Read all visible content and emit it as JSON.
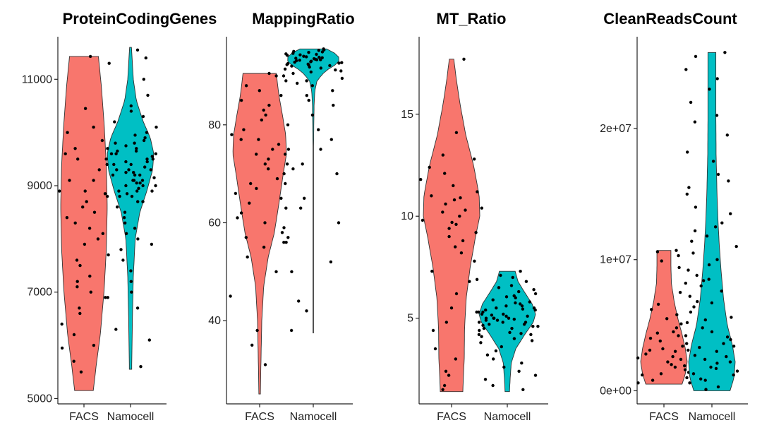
{
  "colors": {
    "FACS": "#F8766D",
    "Namocell": "#00BFC4",
    "point": "#000000"
  },
  "chart_data": [
    {
      "type": "violin",
      "title": "ProteinCodingGenes",
      "categories": [
        "FACS",
        "Namocell"
      ],
      "ylim": [
        4900,
        11800
      ],
      "yticks": [
        5000,
        7000,
        9000,
        11000
      ],
      "ytick_labels": [
        "5000",
        "7000",
        "9000",
        "11000"
      ],
      "series": [
        {
          "name": "FACS",
          "min": 5150,
          "max": 11430,
          "profile": [
            [
              5150,
              0.4
            ],
            [
              5600,
              0.52
            ],
            [
              6200,
              0.7
            ],
            [
              7000,
              0.86
            ],
            [
              7800,
              0.96
            ],
            [
              8600,
              1.0
            ],
            [
              9400,
              0.96
            ],
            [
              10200,
              0.86
            ],
            [
              10900,
              0.74
            ],
            [
              11430,
              0.62
            ]
          ],
          "points": [
            11430,
            11300,
            10450,
            10100,
            9850,
            9700,
            9500,
            9300,
            9100,
            8900,
            8900,
            8700,
            8600,
            8500,
            8300,
            8200,
            8100,
            7900,
            7700,
            7500,
            7300,
            7100,
            7000,
            6900,
            6700,
            6400,
            6200,
            6000,
            5700,
            5500,
            8800,
            9600,
            9100,
            8000,
            7600,
            7200,
            10000,
            8400,
            6600,
            5950
          ]
        },
        {
          "name": "Namocell",
          "min": 5550,
          "max": 11600,
          "profile": [
            [
              5550,
              0.05
            ],
            [
              6500,
              0.08
            ],
            [
              7300,
              0.12
            ],
            [
              8000,
              0.2
            ],
            [
              8500,
              0.4
            ],
            [
              8900,
              0.7
            ],
            [
              9300,
              0.95
            ],
            [
              9600,
              1.0
            ],
            [
              9900,
              0.85
            ],
            [
              10200,
              0.55
            ],
            [
              10600,
              0.25
            ],
            [
              11000,
              0.12
            ],
            [
              11600,
              0.04
            ]
          ],
          "points": [
            11550,
            11400,
            11000,
            10700,
            10500,
            10400,
            10300,
            10200,
            10100,
            10000,
            9950,
            9900,
            9850,
            9800,
            9750,
            9700,
            9650,
            9600,
            9600,
            9550,
            9500,
            9500,
            9450,
            9400,
            9400,
            9350,
            9300,
            9300,
            9250,
            9200,
            9200,
            9150,
            9100,
            9100,
            9050,
            9000,
            9000,
            8950,
            8900,
            8900,
            8850,
            8800,
            8800,
            8700,
            8700,
            8600,
            8500,
            8400,
            8300,
            8200,
            8100,
            8000,
            7900,
            7800,
            7600,
            7400,
            7200,
            7000,
            6900,
            6700,
            6300,
            6100,
            5600,
            9700,
            9600,
            9500,
            9400,
            9300,
            9200,
            9100,
            9000,
            8900,
            9800,
            9650,
            9450,
            9250,
            9050,
            8850
          ]
        }
      ]
    },
    {
      "type": "violin",
      "title": "MappingRatio",
      "categories": [
        "FACS",
        "Namocell"
      ],
      "ylim": [
        23,
        98
      ],
      "yticks": [
        40,
        60,
        80
      ],
      "ytick_labels": [
        "40",
        "60",
        "80"
      ],
      "series": [
        {
          "name": "FACS",
          "min": 25,
          "max": 90.5,
          "profile": [
            [
              25,
              0.03
            ],
            [
              32,
              0.05
            ],
            [
              40,
              0.08
            ],
            [
              47,
              0.15
            ],
            [
              53,
              0.32
            ],
            [
              58,
              0.55
            ],
            [
              64,
              0.72
            ],
            [
              70,
              0.88
            ],
            [
              74,
              1.0
            ],
            [
              78,
              0.97
            ],
            [
              82,
              0.85
            ],
            [
              86,
              0.72
            ],
            [
              90.5,
              0.62
            ]
          ],
          "points": [
            90.5,
            90,
            89,
            88,
            87,
            86,
            85,
            84,
            83,
            82,
            81,
            80,
            79,
            78,
            77,
            76,
            75,
            75,
            74,
            74,
            73,
            72,
            71,
            70,
            69,
            68,
            67,
            66,
            65,
            64,
            63,
            62,
            61,
            60,
            59,
            58,
            57,
            56,
            55,
            53,
            50,
            45,
            38,
            35,
            31,
            77,
            72,
            68
          ]
        },
        {
          "name": "Namocell",
          "min": 37.5,
          "max": 95.5,
          "profile": [
            [
              37.5,
              0.01
            ],
            [
              45,
              0.01
            ],
            [
              55,
              0.01
            ],
            [
              65,
              0.01
            ],
            [
              75,
              0.01
            ],
            [
              80,
              0.02
            ],
            [
              84,
              0.03
            ],
            [
              87,
              0.06
            ],
            [
              89,
              0.14
            ],
            [
              91,
              0.45
            ],
            [
              92.5,
              0.9
            ],
            [
              93.5,
              1.0
            ],
            [
              94.5,
              0.85
            ],
            [
              95.5,
              0.5
            ]
          ],
          "points": [
            95.5,
            95.2,
            95,
            94.8,
            94.6,
            94.5,
            94.4,
            94.2,
            94,
            93.9,
            93.8,
            93.6,
            93.5,
            93.4,
            93.3,
            93.2,
            93,
            92.9,
            92.8,
            92.6,
            92.5,
            92.4,
            92.2,
            92,
            91.8,
            91.6,
            91.4,
            91.2,
            91,
            90.8,
            90.5,
            90,
            89.5,
            89,
            88.5,
            88,
            87,
            86,
            85,
            84,
            82,
            79,
            77,
            75,
            72,
            71,
            70,
            65,
            63,
            60,
            57,
            56,
            52,
            50,
            44,
            42,
            38,
            94.3,
            93.7,
            93.1,
            92.7,
            92.3,
            94.9,
            95.3,
            93.3,
            92.1
          ]
        }
      ]
    },
    {
      "type": "violin",
      "title": "MT_Ratio",
      "categories": [
        "FACS",
        "Namocell"
      ],
      "ylim": [
        0.8,
        18.8
      ],
      "yticks": [
        5,
        10,
        15
      ],
      "ytick_labels": [
        "5",
        "10",
        "15"
      ],
      "series": [
        {
          "name": "FACS",
          "min": 1.4,
          "max": 17.7,
          "profile": [
            [
              1.4,
              0.4
            ],
            [
              2.2,
              0.42
            ],
            [
              3.0,
              0.45
            ],
            [
              4.5,
              0.46
            ],
            [
              6,
              0.52
            ],
            [
              7.5,
              0.66
            ],
            [
              9,
              0.85
            ],
            [
              10,
              1.0
            ],
            [
              11,
              0.98
            ],
            [
              12.5,
              0.78
            ],
            [
              14,
              0.5
            ],
            [
              15.5,
              0.3
            ],
            [
              16.8,
              0.16
            ],
            [
              17.7,
              0.08
            ]
          ],
          "points": [
            17.7,
            14.1,
            13,
            12.8,
            12.4,
            12.1,
            11.8,
            11.5,
            11.2,
            11,
            10.8,
            10.6,
            10.4,
            10.2,
            10,
            9.8,
            9.6,
            9.4,
            9.2,
            9,
            8.8,
            8.5,
            8.2,
            7.8,
            7.3,
            6.8,
            6.2,
            5.5,
            4.8,
            4.4,
            4.2,
            3.5,
            3.0,
            2.4,
            2.2,
            1.7,
            1.5,
            10.9,
            10.3,
            9.7
          ]
        },
        {
          "name": "Namocell",
          "min": 1.4,
          "max": 7.3,
          "profile": [
            [
              1.4,
              0.08
            ],
            [
              2.0,
              0.1
            ],
            [
              2.8,
              0.14
            ],
            [
              3.5,
              0.3
            ],
            [
              4.2,
              0.62
            ],
            [
              4.8,
              0.92
            ],
            [
              5.2,
              1.0
            ],
            [
              5.7,
              0.88
            ],
            [
              6.3,
              0.6
            ],
            [
              6.8,
              0.38
            ],
            [
              7.3,
              0.28
            ]
          ],
          "points": [
            7.3,
            7.1,
            7,
            6.9,
            6.8,
            6.6,
            6.5,
            6.4,
            6.3,
            6.2,
            6.1,
            6,
            5.9,
            5.8,
            5.7,
            5.6,
            5.5,
            5.5,
            5.4,
            5.4,
            5.3,
            5.3,
            5.2,
            5.2,
            5.1,
            5.1,
            5,
            5,
            5,
            4.9,
            4.9,
            4.8,
            4.8,
            4.7,
            4.7,
            4.6,
            4.6,
            4.5,
            4.5,
            4.4,
            4.3,
            4.2,
            4.1,
            4,
            3.9,
            3.8,
            3.6,
            3.4,
            3.2,
            3,
            2.8,
            2.6,
            2.4,
            2.2,
            2.0,
            1.7,
            1.5,
            5.3,
            5.0,
            4.8,
            5.6,
            5.15,
            4.95,
            5.45,
            4.65,
            5.75,
            6.05,
            4.25
          ]
        }
      ]
    },
    {
      "type": "violin",
      "title": "CleanReadsCount",
      "categories": [
        "FACS",
        "Namocell"
      ],
      "ylim": [
        -1000000,
        27000000
      ],
      "yticks": [
        0,
        10000000,
        20000000
      ],
      "ytick_labels": [
        "0e+00",
        "1e+07",
        "2e+07"
      ],
      "series": [
        {
          "name": "FACS",
          "min": 500000,
          "max": 10700000,
          "profile": [
            [
              500000,
              0.78
            ],
            [
              1300000,
              0.92
            ],
            [
              2200000,
              1.0
            ],
            [
              3200000,
              0.92
            ],
            [
              4300000,
              0.78
            ],
            [
              5500000,
              0.6
            ],
            [
              6800000,
              0.44
            ],
            [
              8200000,
              0.32
            ],
            [
              9500000,
              0.3
            ],
            [
              10700000,
              0.3
            ]
          ],
          "points": [
            10700000,
            10600000,
            10300000,
            9900000,
            9400000,
            8200000,
            7500000,
            6600000,
            6200000,
            5800000,
            5500000,
            5100000,
            4800000,
            4500000,
            4200000,
            4000000,
            3800000,
            3600000,
            3400000,
            3200000,
            3000000,
            2800000,
            2600000,
            2400000,
            2200000,
            2000000,
            1800000,
            1600000,
            1400000,
            1200000,
            1000000,
            800000,
            600000,
            3100000,
            2500000,
            1900000,
            1300000,
            4400000
          ]
        },
        {
          "name": "Namocell",
          "min": 0,
          "max": 25800000,
          "profile": [
            [
              0,
              0.78
            ],
            [
              1000000,
              0.95
            ],
            [
              2200000,
              1.0
            ],
            [
              3500000,
              0.88
            ],
            [
              5000000,
              0.66
            ],
            [
              7000000,
              0.5
            ],
            [
              9000000,
              0.4
            ],
            [
              11000000,
              0.32
            ],
            [
              13000000,
              0.26
            ],
            [
              15000000,
              0.22
            ],
            [
              18000000,
              0.18
            ],
            [
              21000000,
              0.17
            ],
            [
              24000000,
              0.17
            ],
            [
              25800000,
              0.17
            ]
          ],
          "points": [
            25800000,
            25500000,
            24500000,
            23800000,
            23000000,
            22000000,
            20500000,
            19500000,
            18200000,
            17500000,
            16500000,
            15500000,
            15000000,
            14000000,
            13500000,
            12800000,
            12200000,
            11800000,
            11400000,
            11000000,
            10500000,
            10000000,
            9600000,
            9200000,
            8800000,
            8400000,
            8000000,
            7600000,
            7200000,
            6800000,
            6400000,
            6000000,
            5600000,
            5200000,
            4800000,
            4500000,
            4200000,
            3900000,
            3600000,
            3300000,
            3000000,
            2700000,
            2400000,
            2100000,
            1800000,
            1500000,
            1200000,
            900000,
            600000,
            300000,
            100000,
            2200000,
            1700000,
            2600000,
            3100000,
            1300000,
            800000,
            4100000,
            3400000,
            5400000,
            6700000,
            8500000,
            12500000,
            16000000,
            21000000
          ]
        }
      ]
    }
  ]
}
